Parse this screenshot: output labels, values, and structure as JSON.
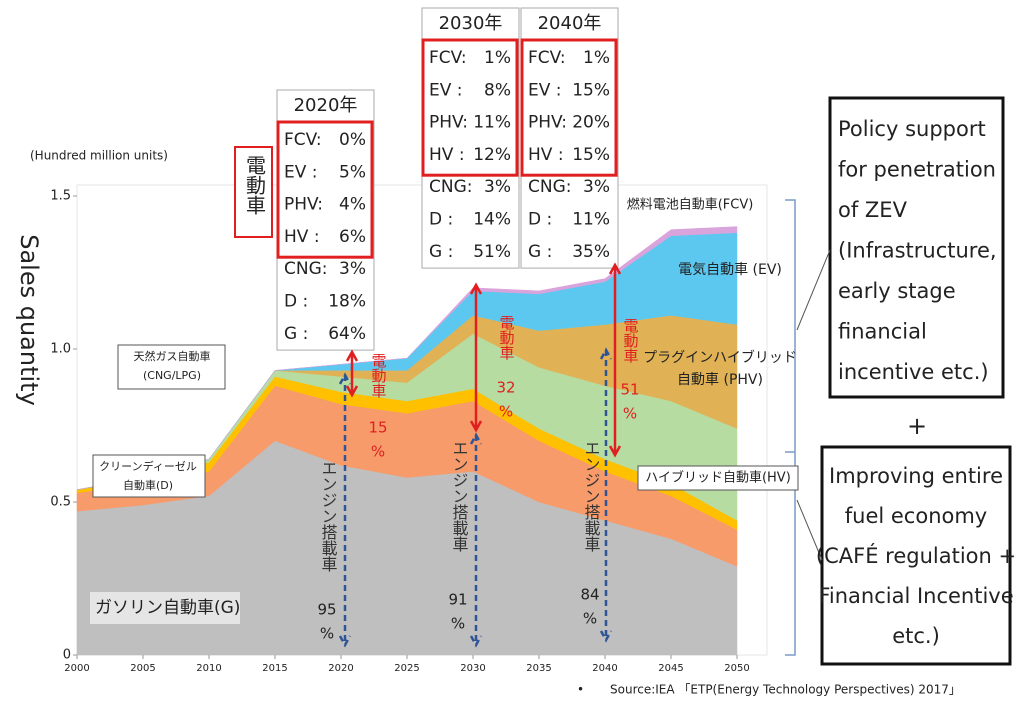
{
  "chart_data": {
    "type": "area",
    "stacked": true,
    "y_label": "Sales quantity",
    "unit": "(Hundred million units)",
    "x": [
      2000,
      2005,
      2010,
      2015,
      2020,
      2025,
      2030,
      2035,
      2040,
      2045,
      2050
    ],
    "xlim": [
      2000,
      2050
    ],
    "xticks": [
      2000,
      2005,
      2010,
      2015,
      2020,
      2025,
      2030,
      2035,
      2040,
      2045,
      2050
    ],
    "ylim": [
      0,
      1.5
    ],
    "yticks": [
      0,
      0.5,
      {
        "value": 1,
        "label": "1.0"
      },
      1.5
    ],
    "series": [
      {
        "label": [
          "ガソリン自動車(G)"
        ],
        "color": "#bfbfbf",
        "values": [
          0.47,
          0.49,
          0.52,
          0.7,
          0.62,
          0.58,
          0.6,
          0.5,
          0.44,
          0.38,
          0.29
        ]
      },
      {
        "label": [
          "クリーンディーゼル",
          "自動車(D)"
        ],
        "color": "#f79b6b",
        "values": [
          0.06,
          0.07,
          0.08,
          0.18,
          0.2,
          0.21,
          0.23,
          0.2,
          0.16,
          0.14,
          0.12
        ]
      },
      {
        "label": [
          "天然ガス自動車",
          "(CNG/LPG)"
        ],
        "color": "#ffc000",
        "values": [
          0.01,
          0.02,
          0.03,
          0.03,
          0.04,
          0.04,
          0.04,
          0.04,
          0.04,
          0.04,
          0.03
        ]
      },
      {
        "label": [
          "ハイブリッド自動車(HV)"
        ],
        "color": "#b6dca2",
        "values": [
          0,
          0,
          0.01,
          0.02,
          0.05,
          0.06,
          0.18,
          0.2,
          0.24,
          0.27,
          0.3
        ]
      },
      {
        "label": [
          "プラグインハイブリッド",
          "自動車 (PHV)"
        ],
        "color": "#e0b255",
        "values": [
          0,
          0,
          0,
          0,
          0.02,
          0.04,
          0.06,
          0.12,
          0.2,
          0.28,
          0.34
        ]
      },
      {
        "label": [
          "電気自動車 (EV)"
        ],
        "color": "#5cc8f0",
        "values": [
          0,
          0,
          0,
          0,
          0.02,
          0.04,
          0.08,
          0.12,
          0.14,
          0.26,
          0.3
        ]
      },
      {
        "label": [
          "燃料電池自動車(FCV)"
        ],
        "color": "#d9a3dc",
        "values": [
          0,
          0,
          0,
          0,
          0,
          0,
          0.01,
          0.01,
          0.01,
          0.02,
          0.02
        ]
      }
    ],
    "ev_tag": "電動車",
    "panels": [
      {
        "title": "2020年",
        "rows": [
          [
            "FCV:",
            "0%"
          ],
          [
            "EV :",
            "5%"
          ],
          [
            "PHV:",
            "4%"
          ],
          [
            "HV :",
            "6%"
          ],
          [
            "CNG:",
            "3%"
          ],
          [
            "D  :",
            "18%"
          ],
          [
            "G  :",
            "64%"
          ]
        ]
      },
      {
        "title": "2030年",
        "rows": [
          [
            "FCV:",
            "1%"
          ],
          [
            "EV :",
            "8%"
          ],
          [
            "PHV:",
            "11%"
          ],
          [
            "HV :",
            "12%"
          ],
          [
            "CNG:",
            "3%"
          ],
          [
            "D  :",
            "14%"
          ],
          [
            "G  :",
            "51%"
          ]
        ]
      },
      {
        "title": "2040年",
        "rows": [
          [
            "FCV:",
            "1%"
          ],
          [
            "EV :",
            "15%"
          ],
          [
            "PHV:",
            "20%"
          ],
          [
            "HV :",
            "15%"
          ],
          [
            "CNG:",
            "3%"
          ],
          [
            "D  :",
            "11%"
          ],
          [
            "G  :",
            "35%"
          ]
        ]
      }
    ],
    "markers": [
      {
        "electric": [
          "電動車",
          "15",
          "%"
        ],
        "engine": [
          "エンジン搭載車",
          "95",
          "%"
        ]
      },
      {
        "electric": [
          "電動車",
          "32",
          "%"
        ],
        "engine": [
          "エンジン搭載車",
          "91",
          "%"
        ]
      },
      {
        "electric": [
          "電動車",
          "51",
          "%"
        ],
        "engine": [
          "エンジン搭載車",
          "84",
          "%"
        ]
      }
    ],
    "policy": [
      "Policy support",
      "for penetration",
      "of ZEV",
      "(Infrastructure,",
      "early stage",
      "financial",
      "incentive etc.)"
    ],
    "plus": "+",
    "economy": [
      "Improving entire",
      "fuel economy",
      "(CAFÉ regulation +",
      "Financial Incentive",
      "etc.)"
    ],
    "source_bullet": "•",
    "source": "Source:IEA 「ETP(Energy Technology Perspectives) 2017」"
  }
}
